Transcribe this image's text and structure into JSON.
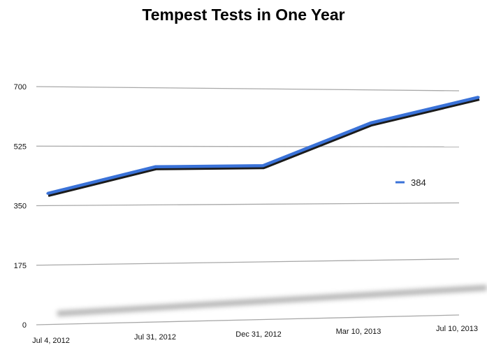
{
  "chart_data": {
    "type": "line",
    "title": "Tempest Tests in One Year",
    "xlabel": "",
    "ylabel": "",
    "categories": [
      "Jul 4, 2012",
      "Jul 31, 2012",
      "Dec 31, 2012",
      "Mar 10, 2013",
      "Jul 10, 2013"
    ],
    "series": [
      {
        "name": "384",
        "values": [
          386,
          464,
          467,
          598,
          680
        ],
        "color": "#3a72d8"
      }
    ],
    "y_ticks": [
      "0",
      "175",
      "350",
      "525",
      "700"
    ],
    "ylim": [
      0,
      700
    ],
    "grid": true,
    "legend": "right"
  }
}
